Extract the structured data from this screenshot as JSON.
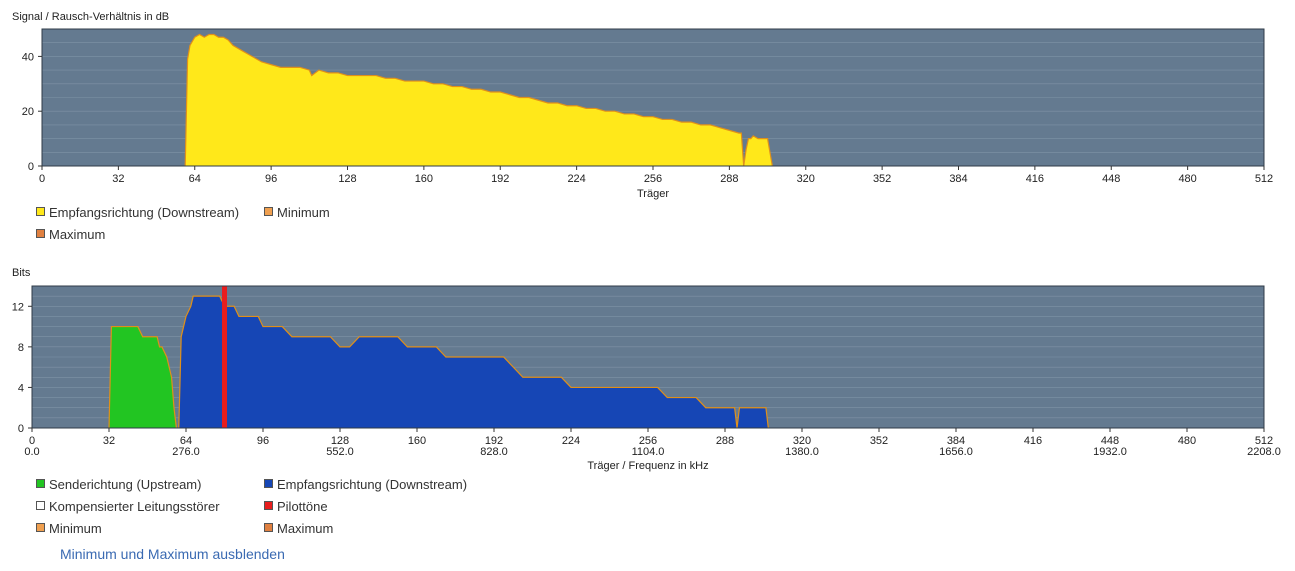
{
  "chart_data": [
    {
      "type": "area",
      "title": "Signal / Rausch-Verhältnis in dB",
      "xlabel": "Träger",
      "ylabel": "",
      "xlim": [
        0,
        512
      ],
      "ylim": [
        0,
        50
      ],
      "xticks": [
        0,
        32,
        64,
        96,
        128,
        160,
        192,
        224,
        256,
        288,
        320,
        352,
        384,
        416,
        448,
        480,
        512
      ],
      "yticks": [
        0,
        20,
        40
      ],
      "colors": {
        "background": "#647a90",
        "fill": "#ffe81a",
        "line": "#e0901a",
        "grid": "#7f93a6"
      },
      "series": [
        {
          "name": "Empfangsrichtung (Downstream)",
          "color": "#ffe81a",
          "x": [
            60,
            61,
            62,
            64,
            66,
            68,
            70,
            72,
            74,
            76,
            78,
            80,
            84,
            88,
            92,
            96,
            100,
            104,
            108,
            112,
            113,
            116,
            120,
            124,
            128,
            132,
            136,
            140,
            144,
            148,
            152,
            156,
            160,
            164,
            168,
            172,
            176,
            180,
            184,
            188,
            192,
            196,
            200,
            204,
            208,
            212,
            216,
            220,
            224,
            228,
            232,
            236,
            240,
            244,
            248,
            252,
            256,
            260,
            264,
            268,
            272,
            276,
            280,
            284,
            288,
            292,
            293,
            294,
            295,
            296,
            297,
            298,
            300,
            304,
            306
          ],
          "y": [
            0,
            39,
            44,
            47,
            48,
            47,
            48,
            48,
            47,
            47,
            46,
            44,
            42,
            40,
            38,
            37,
            36,
            36,
            36,
            35,
            33,
            35,
            34,
            34,
            33,
            33,
            33,
            33,
            32,
            32,
            31,
            31,
            31,
            30,
            30,
            29,
            29,
            28,
            28,
            27,
            27,
            26,
            25,
            25,
            24,
            23,
            23,
            22,
            22,
            21,
            21,
            20,
            20,
            19,
            19,
            18,
            18,
            17,
            17,
            16,
            16,
            15,
            15,
            14,
            13,
            12,
            12,
            0,
            6,
            10,
            10,
            11,
            10,
            10,
            0
          ]
        }
      ],
      "legend": [
        {
          "label": "Empfangsrichtung (Downstream)",
          "color": "#ffe81a"
        },
        {
          "label": "Minimum",
          "color": "#f0a050"
        },
        {
          "label": "Maximum",
          "color": "#e08040"
        }
      ]
    },
    {
      "type": "area",
      "title": "Bits",
      "xlabel": "Träger / Frequenz in kHz",
      "ylabel": "",
      "xlim": [
        0,
        512
      ],
      "ylim": [
        0,
        14
      ],
      "xticks": [
        0,
        32,
        64,
        96,
        128,
        160,
        192,
        224,
        256,
        288,
        320,
        352,
        384,
        416,
        448,
        480,
        512
      ],
      "xticks_secondary": [
        "0.0",
        "276.0",
        "552.0",
        "828.0",
        "1104.0",
        "1380.0",
        "1656.0",
        "1932.0",
        "2208.0"
      ],
      "yticks": [
        0,
        4,
        8,
        12
      ],
      "colors": {
        "background": "#647a90",
        "grid": "#7f93a6",
        "line": "#e0901a"
      },
      "series": [
        {
          "name": "Senderichtung (Upstream)",
          "color": "#22c522",
          "x": [
            32,
            33,
            34,
            40,
            42,
            44,
            46,
            48,
            50,
            52,
            53,
            54,
            56,
            57,
            58,
            59,
            60
          ],
          "y": [
            0,
            10,
            10,
            10,
            10,
            10,
            9,
            9,
            9,
            9,
            8,
            8,
            7,
            6,
            5,
            2,
            0
          ]
        },
        {
          "name": "Empfangsrichtung (Downstream)",
          "color": "#1646b5",
          "x": [
            61,
            62,
            64,
            66,
            67,
            68,
            70,
            72,
            76,
            78,
            80,
            82,
            84,
            86,
            88,
            90,
            92,
            94,
            96,
            100,
            104,
            108,
            112,
            116,
            120,
            124,
            128,
            132,
            136,
            140,
            144,
            148,
            152,
            156,
            160,
            164,
            168,
            172,
            176,
            180,
            184,
            188,
            192,
            196,
            200,
            204,
            208,
            212,
            216,
            220,
            224,
            228,
            232,
            236,
            240,
            244,
            248,
            252,
            256,
            260,
            264,
            268,
            272,
            276,
            280,
            284,
            288,
            292,
            293,
            294,
            296,
            298,
            300,
            304,
            305,
            306
          ],
          "y": [
            0,
            9,
            11,
            12,
            13,
            13,
            13,
            13,
            13,
            13,
            12,
            12,
            12,
            11,
            11,
            11,
            11,
            11,
            10,
            10,
            10,
            9,
            9,
            9,
            9,
            9,
            8,
            8,
            9,
            9,
            9,
            9,
            9,
            8,
            8,
            8,
            8,
            7,
            7,
            7,
            7,
            7,
            7,
            7,
            6,
            5,
            5,
            5,
            5,
            5,
            4,
            4,
            4,
            4,
            4,
            4,
            4,
            4,
            4,
            4,
            3,
            3,
            3,
            3,
            2,
            2,
            2,
            2,
            0,
            2,
            2,
            2,
            2,
            2,
            2,
            0
          ]
        }
      ],
      "pilot_tone": {
        "name": "Pilottöne",
        "x": 80,
        "color": "#e81d1d"
      },
      "legend": [
        {
          "label": "Senderichtung (Upstream)",
          "color": "#22c522"
        },
        {
          "label": "Empfangsrichtung (Downstream)",
          "color": "#1646b5"
        },
        {
          "label": "Kompensierter Leitungsstörer",
          "color": "#ffffff"
        },
        {
          "label": "Pilottöne",
          "color": "#e81d1d"
        },
        {
          "label": "Minimum",
          "color": "#f0a050"
        },
        {
          "label": "Maximum",
          "color": "#e08040"
        }
      ]
    }
  ],
  "toggle_link_label": "Minimum und Maximum ausblenden"
}
